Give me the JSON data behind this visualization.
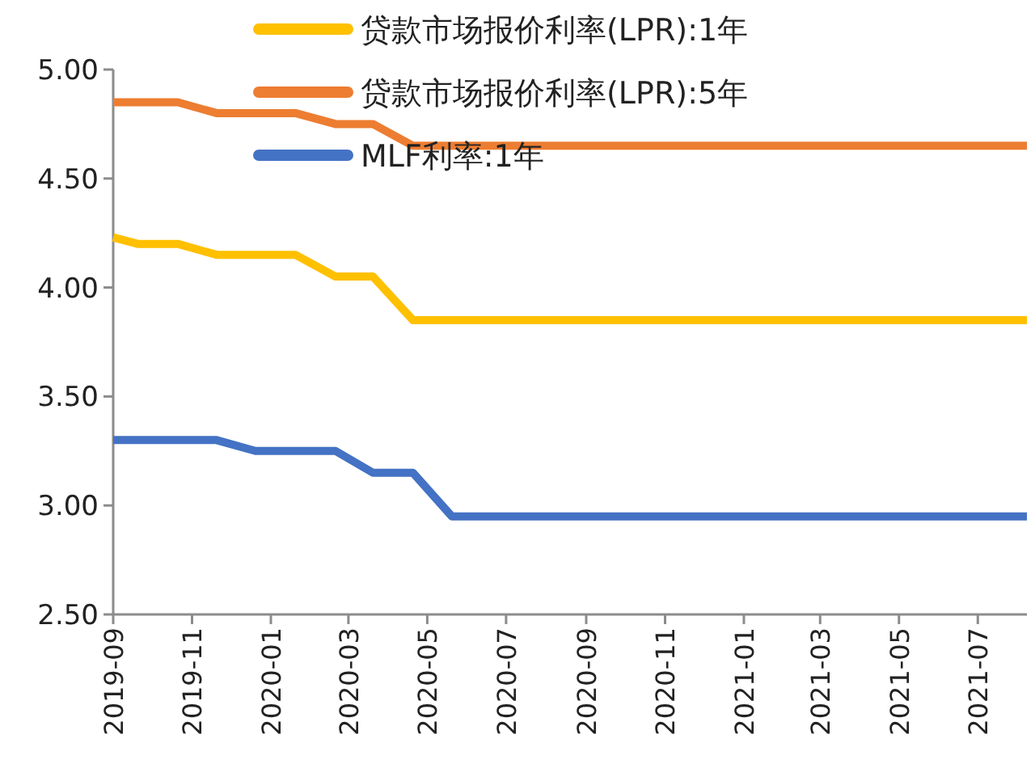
{
  "chart_data": {
    "type": "line",
    "legend": "top",
    "line_style": "solid",
    "marker": "none",
    "grid": false,
    "xlim": [
      "2019-09-01",
      "2021-08-08"
    ],
    "ylim": [
      2.5,
      5.0
    ],
    "xticks": [
      "2019-09",
      "2019-11",
      "2020-01",
      "2020-03",
      "2020-05",
      "2020-07",
      "2020-09",
      "2020-11",
      "2021-01",
      "2021-03",
      "2021-05",
      "2021-07"
    ],
    "yticks": [
      {
        "value": 2.5,
        "label": "2.50"
      },
      {
        "value": 3.0,
        "label": "3.00"
      },
      {
        "value": 3.5,
        "label": "3.50"
      },
      {
        "value": 4.0,
        "label": "4.00"
      },
      {
        "value": 4.5,
        "label": "4.50"
      },
      {
        "value": 5.0,
        "label": "5.00"
      }
    ],
    "series": [
      {
        "name": "贷款市场报价利率(LPR):1年",
        "color": "#ffc000",
        "x": [
          "2019-09-01",
          "2019-09-20",
          "2019-10-21",
          "2019-11-20",
          "2019-12-20",
          "2020-01-20",
          "2020-02-20",
          "2020-03-20",
          "2020-04-20",
          "2021-08-08"
        ],
        "values": [
          4.23,
          4.2,
          4.2,
          4.15,
          4.15,
          4.15,
          4.05,
          4.05,
          3.85,
          3.85
        ]
      },
      {
        "name": "贷款市场报价利率(LPR):5年",
        "color": "#ed7d31",
        "x": [
          "2019-09-01",
          "2019-09-20",
          "2019-10-21",
          "2019-11-20",
          "2019-12-20",
          "2020-01-20",
          "2020-02-20",
          "2020-03-20",
          "2020-04-20",
          "2021-08-08"
        ],
        "values": [
          4.85,
          4.85,
          4.85,
          4.8,
          4.8,
          4.8,
          4.75,
          4.75,
          4.65,
          4.65
        ]
      },
      {
        "name": "MLF利率:1年",
        "color": "#4472c4",
        "x": [
          "2019-09-01",
          "2019-11-20",
          "2019-12-20",
          "2020-01-20",
          "2020-02-20",
          "2020-03-20",
          "2020-04-20",
          "2020-05-20",
          "2021-08-08"
        ],
        "values": [
          3.3,
          3.3,
          3.25,
          3.25,
          3.25,
          3.15,
          3.15,
          2.95,
          2.95
        ]
      }
    ]
  }
}
